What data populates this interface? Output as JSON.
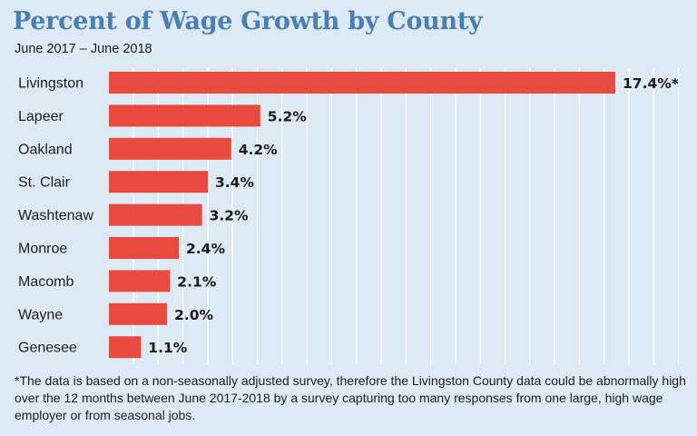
{
  "chart_data": {
    "type": "bar",
    "orientation": "horizontal",
    "title": "Percent of Wage Growth by County",
    "subtitle": "June 2017 – June 2018",
    "categories": [
      "Livingston",
      "Lapeer",
      "Oakland",
      "St. Clair",
      "Washtenaw",
      "Monroe",
      "Macomb",
      "Wayne",
      "Genesee"
    ],
    "values": [
      17.4,
      5.2,
      4.2,
      3.4,
      3.2,
      2.4,
      2.1,
      2.0,
      1.1
    ],
    "value_labels": [
      "17.4%*",
      "5.2%",
      "4.2%",
      "3.4%",
      "3.2%",
      "2.4%",
      "2.1%",
      "2.0%",
      "1.1%"
    ],
    "xlim": [
      0,
      17.4
    ],
    "grid": "vertical",
    "bar_color": "#e84a3f",
    "footnote": "*The data is based on a non-seasonally adjusted survey, therefore the Livingston County data could be abnormally high over the 12 months between June 2017-2018 by a survey capturing too many responses from one large, high wage employer or from seasonal jobs."
  },
  "colors": {
    "background": "#dde9f3",
    "title": "#4a7fb4",
    "grid": "#ffffff"
  }
}
